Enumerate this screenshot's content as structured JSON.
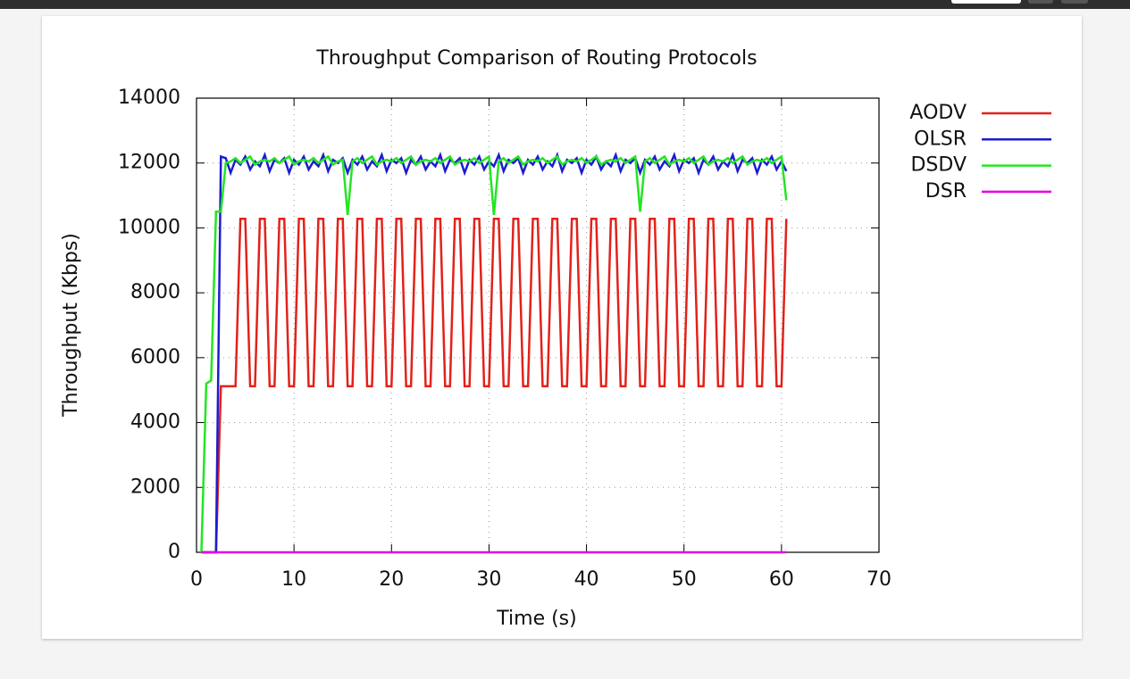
{
  "chart_data": {
    "type": "line",
    "title": "Throughput Comparison of Routing Protocols",
    "x_label": "Time (s)",
    "y_label": "Throughput (Kbps)",
    "x": [
      0.5,
      1,
      1.5,
      2,
      2.5,
      3,
      3.5,
      4,
      4.5,
      5,
      5.5,
      6,
      6.5,
      7,
      7.5,
      8,
      8.5,
      9,
      9.5,
      10,
      10.5,
      11,
      11.5,
      12,
      12.5,
      13,
      13.5,
      14,
      14.5,
      15,
      15.5,
      16,
      16.5,
      17,
      17.5,
      18,
      18.5,
      19,
      19.5,
      20,
      20.5,
      21,
      21.5,
      22,
      22.5,
      23,
      23.5,
      24,
      24.5,
      25,
      25.5,
      26,
      26.5,
      27,
      27.5,
      28,
      28.5,
      29,
      29.5,
      30,
      30.5,
      31,
      31.5,
      32,
      32.5,
      33,
      33.5,
      34,
      34.5,
      35,
      35.5,
      36,
      36.5,
      37,
      37.5,
      38,
      38.5,
      39,
      39.5,
      40,
      40.5,
      41,
      41.5,
      42,
      42.5,
      43,
      43.5,
      44,
      44.5,
      45,
      45.5,
      46,
      46.5,
      47,
      47.5,
      48,
      48.5,
      49,
      49.5,
      50,
      50.5,
      51,
      51.5,
      52,
      52.5,
      53,
      53.5,
      54,
      54.5,
      55,
      55.5,
      56,
      56.5,
      57,
      57.5,
      58,
      58.5,
      59,
      59.5,
      60,
      60.5
    ],
    "series": [
      {
        "name": "AODV",
        "color": "#e2221a",
        "values": [
          0,
          0,
          0,
          0,
          5120,
          5120,
          5120,
          5120,
          10280,
          10280,
          5120,
          5120,
          10280,
          10280,
          5120,
          5120,
          10280,
          10280,
          5120,
          5120,
          10280,
          10280,
          5120,
          5120,
          10280,
          10280,
          5120,
          5120,
          10280,
          10280,
          5120,
          5120,
          10280,
          10280,
          5120,
          5120,
          10280,
          10280,
          5120,
          5120,
          10280,
          10280,
          5120,
          5120,
          10280,
          10280,
          5120,
          5120,
          10280,
          10280,
          5120,
          5120,
          10280,
          10280,
          5120,
          5120,
          10280,
          10280,
          5120,
          5120,
          10280,
          10280,
          5120,
          5120,
          10280,
          10280,
          5120,
          5120,
          10280,
          10280,
          5120,
          5120,
          10280,
          10280,
          5120,
          5120,
          10280,
          10280,
          5120,
          5120,
          10280,
          10280,
          5120,
          5120,
          10280,
          10280,
          5120,
          5120,
          10280,
          10280,
          5120,
          5120,
          10280,
          10280,
          5120,
          5120,
          10280,
          10280,
          5120,
          5120,
          10280,
          10280,
          5120,
          5120,
          10280,
          10280,
          5120,
          5120,
          10280,
          10280,
          5120,
          5120,
          10280,
          10280,
          5120,
          5120,
          10280,
          10280,
          5120,
          5120,
          10280
        ]
      },
      {
        "name": "OLSR",
        "color": "#1c1ccf",
        "values": [
          0,
          0,
          0,
          0,
          12200,
          12150,
          11700,
          12100,
          11950,
          12200,
          11800,
          12050,
          11900,
          12250,
          11750,
          12100,
          12000,
          12150,
          11700,
          12100,
          11950,
          12200,
          11800,
          12050,
          11900,
          12250,
          11750,
          12100,
          12000,
          12150,
          11700,
          12100,
          11950,
          12200,
          11800,
          12050,
          11900,
          12250,
          11750,
          12100,
          12000,
          12150,
          11700,
          12100,
          11950,
          12200,
          11800,
          12050,
          11900,
          12250,
          11750,
          12100,
          12000,
          12150,
          11700,
          12100,
          11950,
          12200,
          11800,
          12050,
          11900,
          12250,
          11750,
          12100,
          12000,
          12150,
          11700,
          12100,
          11950,
          12200,
          11800,
          12050,
          11900,
          12250,
          11750,
          12100,
          12000,
          12150,
          11700,
          12100,
          11950,
          12200,
          11800,
          12050,
          11900,
          12250,
          11750,
          12100,
          12000,
          12150,
          11700,
          12100,
          11950,
          12200,
          11800,
          12050,
          11900,
          12250,
          11750,
          12100,
          12000,
          12150,
          11700,
          12100,
          11950,
          12200,
          11800,
          12050,
          11900,
          12250,
          11750,
          12100,
          12000,
          12150,
          11700,
          12100,
          11950,
          12200,
          11800,
          12050,
          11750
        ]
      },
      {
        "name": "DSDV",
        "color": "#22e622",
        "values": [
          0,
          5200,
          5300,
          10500,
          10500,
          12000,
          12050,
          12150,
          12000,
          12100,
          12200,
          11950,
          12050,
          12100,
          12050,
          12150,
          12000,
          12100,
          12200,
          11950,
          12050,
          12100,
          12050,
          12150,
          12000,
          12100,
          12200,
          11950,
          12050,
          12100,
          10400,
          12050,
          12150,
          12000,
          12100,
          12200,
          11950,
          12050,
          12100,
          12050,
          12150,
          12000,
          12100,
          12200,
          11950,
          12050,
          12100,
          12050,
          12150,
          12000,
          12100,
          12200,
          11950,
          12050,
          12100,
          12050,
          12150,
          12000,
          12100,
          12200,
          10400,
          12050,
          12150,
          12000,
          12100,
          12200,
          11950,
          12050,
          12100,
          12050,
          12150,
          12000,
          12100,
          12200,
          11950,
          12050,
          12100,
          12050,
          12150,
          12000,
          12100,
          12200,
          11950,
          12050,
          12100,
          12050,
          12150,
          12000,
          12100,
          12200,
          10500,
          12050,
          12150,
          12000,
          12100,
          12200,
          11950,
          12050,
          12100,
          12050,
          12150,
          12000,
          12100,
          12200,
          11950,
          12050,
          12100,
          12050,
          12150,
          12000,
          12100,
          12200,
          11950,
          12050,
          12100,
          12050,
          12150,
          12000,
          12100,
          12200,
          10850
        ]
      },
      {
        "name": "DSR",
        "color": "#e600e6",
        "values": [
          0,
          0,
          0,
          0,
          0,
          0,
          0,
          0,
          0,
          0,
          0,
          0,
          0,
          0,
          0,
          0,
          0,
          0,
          0,
          0,
          0,
          0,
          0,
          0,
          0,
          0,
          0,
          0,
          0,
          0,
          0,
          0,
          0,
          0,
          0,
          0,
          0,
          0,
          0,
          0,
          0,
          0,
          0,
          0,
          0,
          0,
          0,
          0,
          0,
          0,
          0,
          0,
          0,
          0,
          0,
          0,
          0,
          0,
          0,
          0,
          0,
          0,
          0,
          0,
          0,
          0,
          0,
          0,
          0,
          0,
          0,
          0,
          0,
          0,
          0,
          0,
          0,
          0,
          0,
          0,
          0,
          0,
          0,
          0,
          0,
          0,
          0,
          0,
          0,
          0,
          0,
          0,
          0,
          0,
          0,
          0,
          0,
          0,
          0,
          0,
          0,
          0,
          0,
          0,
          0,
          0,
          0,
          0,
          0,
          0,
          0,
          0,
          0,
          0,
          0,
          0,
          0,
          0,
          0,
          0,
          0
        ]
      }
    ],
    "xlim": [
      0,
      70
    ],
    "xticks": [
      0,
      10,
      20,
      30,
      40,
      50,
      60,
      70
    ],
    "ylim": [
      0,
      14000
    ],
    "yticks": [
      0,
      2000,
      4000,
      6000,
      8000,
      10000,
      12000,
      14000
    ],
    "grid": true,
    "legend": "outside-right"
  }
}
